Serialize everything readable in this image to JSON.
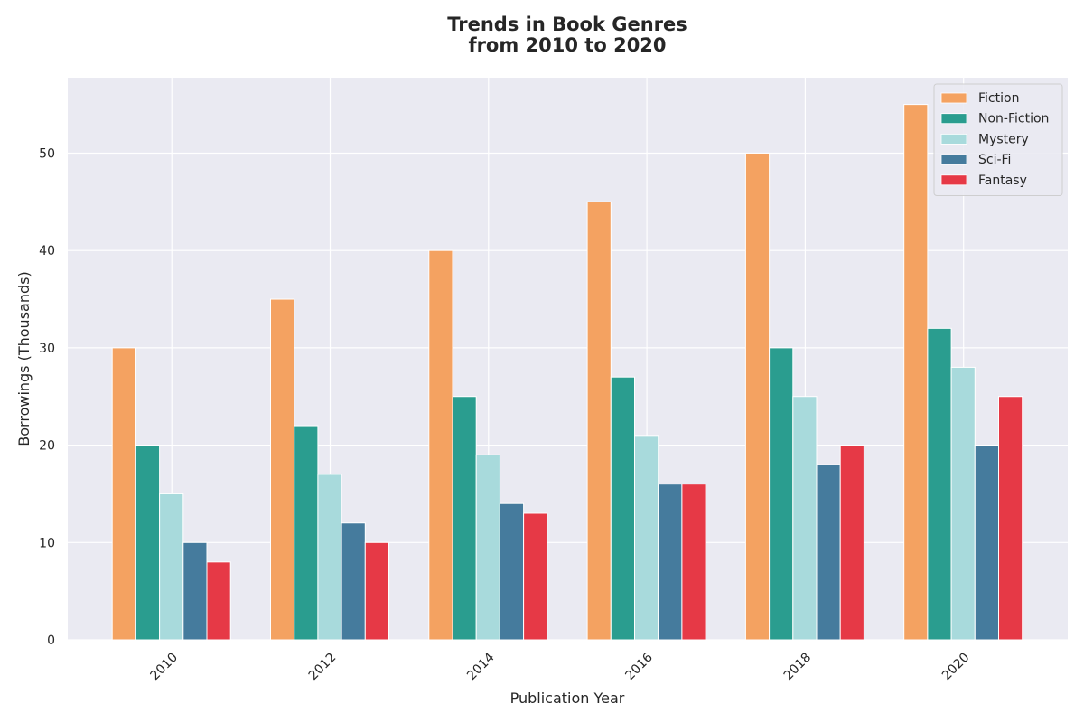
{
  "chart_data": {
    "type": "bar",
    "title_lines": [
      "Trends in Book Genres",
      "from 2010 to 2020"
    ],
    "xlabel": "Publication Year",
    "ylabel": "Borrowings (Thousands)",
    "categories": [
      "2010",
      "2012",
      "2014",
      "2016",
      "2018",
      "2020"
    ],
    "x_tick_rotation_deg": 45,
    "ylim": [
      0,
      57.75
    ],
    "yticks": [
      0,
      10,
      20,
      30,
      40,
      50
    ],
    "grid": true,
    "legend_position": "top-right",
    "background": "#eaeaf2",
    "series": [
      {
        "name": "Fiction",
        "color": "#f4a261",
        "values": [
          30,
          35,
          40,
          45,
          50,
          55
        ]
      },
      {
        "name": "Non-Fiction",
        "color": "#2a9d8f",
        "values": [
          20,
          22,
          25,
          27,
          30,
          32
        ]
      },
      {
        "name": "Mystery",
        "color": "#a8dadc",
        "values": [
          15,
          17,
          19,
          21,
          25,
          28
        ]
      },
      {
        "name": "Sci-Fi",
        "color": "#457b9d",
        "values": [
          10,
          12,
          14,
          16,
          18,
          20
        ]
      },
      {
        "name": "Fantasy",
        "color": "#e63946",
        "values": [
          8,
          10,
          13,
          16,
          20,
          25
        ]
      }
    ]
  }
}
